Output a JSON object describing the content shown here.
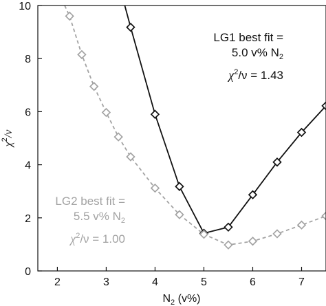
{
  "chart_data": {
    "type": "line",
    "xlabel": "N2 (v%)",
    "ylabel": "χ2/ν",
    "xlim": [
      1.6,
      7.5
    ],
    "ylim": [
      0,
      10
    ],
    "x_ticks": [
      2,
      3,
      4,
      5,
      6,
      7
    ],
    "y_ticks": [
      0,
      2,
      4,
      6,
      8,
      10
    ],
    "grid": false,
    "series": [
      {
        "style": "solid",
        "color": "#111111",
        "marker": "diamond",
        "x": [
          3.5,
          4.0,
          4.5,
          5.0,
          5.5,
          6.0,
          6.5,
          7.0,
          7.5
        ],
        "y": [
          9.18,
          5.9,
          3.18,
          1.42,
          1.65,
          2.87,
          4.1,
          5.22,
          6.22
        ],
        "line_extends_above_to_x": 3.38
      },
      {
        "style": "dashed",
        "color": "#a3a3a3",
        "marker": "diamond",
        "x": [
          2.25,
          2.5,
          2.75,
          3.0,
          3.25,
          3.5,
          4.0,
          4.5,
          5.0,
          5.5,
          6.0,
          6.5,
          7.0,
          7.5
        ],
        "y": [
          9.6,
          8.15,
          6.95,
          5.97,
          5.05,
          4.3,
          3.12,
          2.12,
          1.38,
          0.98,
          1.12,
          1.4,
          1.73,
          2.07
        ],
        "line_extends_above_to_x": 2.15
      }
    ],
    "annotations": [
      {
        "lines": [
          "LG1 best fit =",
          "5.0 v% N2",
          "χ2/ν = 1.43"
        ],
        "color": "#111111"
      },
      {
        "lines": [
          "LG2 best fit =",
          "5.5 v% N2",
          "χ2/ν = 1.00"
        ],
        "color": "#a3a3a3"
      }
    ]
  },
  "labels": {
    "lg1_line1": "LG1 best fit =",
    "lg1_line2_pre": "5.0 v% N",
    "lg1_line2_sub": "2",
    "lg1_line3_chi": "χ",
    "lg1_line3_sup": "2",
    "lg1_line3_post": "/ν = 1.43",
    "lg2_line1": "LG2 best fit =",
    "lg2_line2_pre": "5.5 v% N",
    "lg2_line2_sub": "2",
    "lg2_line3_chi": "χ",
    "lg2_line3_sup": "2",
    "lg2_line3_post": "/ν = 1.00",
    "xlabel_pre": "N",
    "xlabel_sub": "2",
    "xlabel_post": " (v%)",
    "ylabel_chi": "χ",
    "ylabel_sup": "2",
    "ylabel_post": "/ν"
  }
}
